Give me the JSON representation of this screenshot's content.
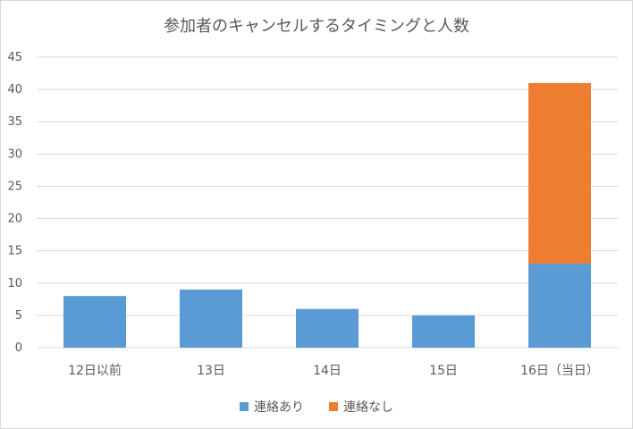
{
  "chart_data": {
    "type": "bar",
    "stacked": true,
    "title": "参加者のキャンセルするタイミングと人数",
    "categories": [
      "12日以前",
      "13日",
      "14日",
      "15日",
      "16日（当日）"
    ],
    "series": [
      {
        "name": "連絡あり",
        "color": "#5b9bd5",
        "values": [
          8,
          9,
          6,
          5,
          13
        ]
      },
      {
        "name": "連絡なし",
        "color": "#ed7d31",
        "values": [
          0,
          0,
          0,
          0,
          28
        ]
      }
    ],
    "ylim": [
      0,
      45
    ],
    "yticks": [
      0,
      5,
      10,
      15,
      20,
      25,
      30,
      35,
      40,
      45
    ],
    "grid": true,
    "legend_position": "bottom"
  }
}
